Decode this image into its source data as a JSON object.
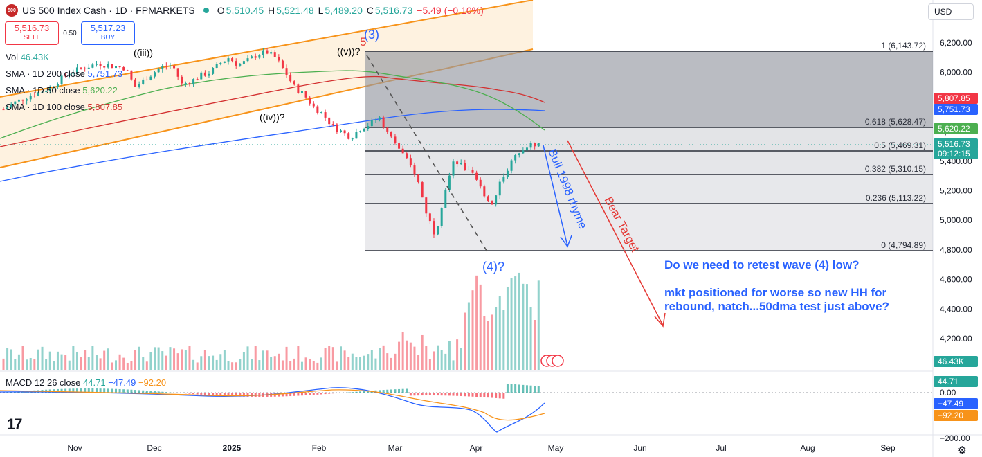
{
  "header": {
    "logo_text": "500",
    "symbol": "US 500 Index Cash · 1D · FPMARKETS",
    "open_label": "O",
    "open": "5,510.45",
    "high_label": "H",
    "high": "5,521.48",
    "low_label": "L",
    "low": "5,489.20",
    "close_label": "C",
    "close": "5,516.73",
    "change": "−5.49 (−0.10%)"
  },
  "trade": {
    "sell_price": "5,516.73",
    "sell_label": "SELL",
    "spread": "0.50",
    "buy_price": "5,517.23",
    "buy_label": "BUY"
  },
  "indicators": {
    "vol_label": "Vol",
    "vol_value": "46.43K",
    "sma200_label": "SMA · 1D 200 close",
    "sma200_value": "5,751.73",
    "sma50_label": "SMA · 1D 50 close",
    "sma50_value": "5,620.22",
    "sma100_label": "SMA · 1D 100 close",
    "sma100_value": "5,807.85",
    "macd_label": "MACD 12 26 close",
    "macd_hist": "44.71",
    "macd_line": "−47.49",
    "macd_signal": "−92.20"
  },
  "currency_select": "USD",
  "colors": {
    "up": "#26a69a",
    "down": "#f23645",
    "sma200": "#2962ff",
    "sma50": "#4caf50",
    "sma100": "#d32f2f",
    "channel": "#f7931a",
    "annotation": "#2962ff",
    "bear": "#e53935"
  },
  "chart_data": {
    "type": "candlestick",
    "symbol": "US 500 Index Cash",
    "interval": "1D",
    "x_tick_labels": [
      "Nov",
      "Dec",
      "2025",
      "Feb",
      "Mar",
      "Apr",
      "May",
      "Jun",
      "Jul",
      "Aug",
      "Sep"
    ],
    "y_tick_labels": [
      "6,200.00",
      "6,000.00",
      "5,800.00",
      "5,600.00",
      "5,400.00",
      "5,200.00",
      "5,000.00",
      "4,800.00",
      "4,600.00",
      "4,400.00",
      "4,200.00"
    ],
    "ylim": [
      4050,
      6320
    ],
    "price_labels": [
      {
        "value": "5,807.85",
        "color": "#f23645"
      },
      {
        "value": "5,751.73",
        "color": "#2962ff"
      },
      {
        "value": "5,620.22",
        "color": "#4caf50"
      },
      {
        "value": "5,516.73",
        "color": "#26a69a"
      },
      {
        "value": "09:12:15",
        "color": "#26a69a"
      },
      {
        "value": "46.43K",
        "color": "#26a69a"
      },
      {
        "value": "44.71",
        "color": "#26a69a"
      },
      {
        "value": "0.00",
        "color": "#ffffff"
      },
      {
        "value": "−47.49",
        "color": "#2962ff"
      },
      {
        "value": "−92.20",
        "color": "#f7931a"
      }
    ],
    "macd_axis_labels": [
      "0.00",
      "−200.00"
    ],
    "fib_levels": [
      {
        "ratio": "1",
        "price": 6143.72,
        "label": "1 (6,143.72)"
      },
      {
        "ratio": "0.618",
        "price": 5628.47,
        "label": "0.618 (5,628.47)"
      },
      {
        "ratio": "0.5",
        "price": 5469.31,
        "label": "0.5 (5,469.31)"
      },
      {
        "ratio": "0.382",
        "price": 5310.15,
        "label": "0.382 (5,310.15)"
      },
      {
        "ratio": "0.236",
        "price": 5113.22,
        "label": "0.236 (5,113.22)"
      },
      {
        "ratio": "0",
        "price": 4794.89,
        "label": "0 (4,794.89)"
      }
    ],
    "wave_labels": [
      "((iii))",
      "((iv))?",
      "((v))?",
      "5",
      "(3)",
      "(4)?"
    ],
    "annotations": {
      "bull_text": "Bull 1998 rhyme",
      "bear_text": "Bear Target",
      "note1": "Do we need to retest wave (4) low?",
      "note2_line1": "mkt positioned for worse so new HH for",
      "note2_line2": "rebound, natch...50dma test just above?"
    },
    "ohlc_path_approx": [
      5750,
      5790,
      5820,
      5850,
      5870,
      5900,
      5950,
      6000,
      6020,
      6040,
      6060,
      6050,
      6040,
      6030,
      5900,
      5950,
      6000,
      6040,
      6050,
      5920,
      5940,
      5980,
      6000,
      6060,
      6100,
      6050,
      6080,
      6120,
      6140,
      6100,
      6000,
      5900,
      5850,
      5770,
      5720,
      5640,
      5600,
      5560,
      5620,
      5650,
      5700,
      5580,
      5500,
      5400,
      5300,
      5060,
      4900,
      5200,
      5400,
      5360,
      5300,
      5200,
      5100,
      5280,
      5380,
      5480,
      5510,
      5517
    ]
  }
}
